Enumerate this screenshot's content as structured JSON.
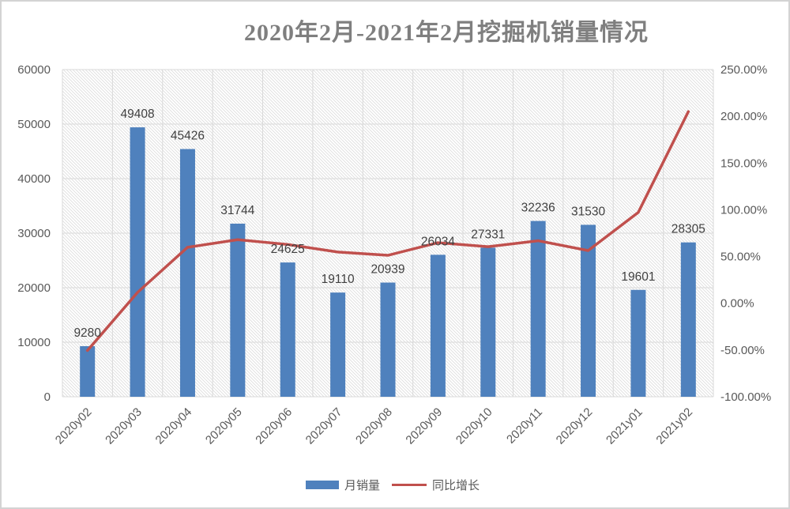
{
  "title": "2020年2月-2021年2月挖掘机销量情况",
  "legend": {
    "bar_label": "月销量",
    "line_label": "同比增长"
  },
  "colors": {
    "bar": "#4F81BD",
    "line": "#C0504D",
    "grid": "#D9D9D9",
    "hatch": "#DEDEDE",
    "axis_text": "#595959",
    "data_label": "#404040",
    "title_text": "#7F7F7F",
    "frame_border": "#D3D3D3"
  },
  "chart_data": {
    "type": "bar+line combo, dual axis",
    "title": "2020年2月-2021年2月挖掘机销量情况",
    "categories": [
      "2020y02",
      "2020y03",
      "2020y04",
      "2020y05",
      "2020y06",
      "2020y07",
      "2020y08",
      "2020y09",
      "2020y10",
      "2020y11",
      "2020y12",
      "2021y01",
      "2021y02"
    ],
    "series": [
      {
        "name": "月销量",
        "type": "bar",
        "axis": "left",
        "values": [
          9280,
          49408,
          45426,
          31744,
          24625,
          19110,
          20939,
          26034,
          27331,
          32236,
          31530,
          19601,
          28305
        ],
        "data_labels": [
          "9280",
          "49408",
          "45426",
          "31744",
          "24625",
          "19110",
          "20939",
          "26034",
          "27331",
          "32236",
          "31530",
          "19601",
          "28305"
        ]
      },
      {
        "name": "同比增长",
        "type": "line",
        "axis": "right",
        "values_percent": [
          -50.5,
          11.6,
          59.9,
          68.0,
          62.9,
          54.8,
          51.3,
          64.8,
          60.5,
          66.9,
          56.4,
          97.2,
          205.0
        ]
      }
    ],
    "left_axis": {
      "min": 0,
      "max": 60000,
      "step": 10000,
      "tick_labels": [
        "0",
        "10000",
        "20000",
        "30000",
        "40000",
        "50000",
        "60000"
      ]
    },
    "right_axis": {
      "min": -100,
      "max": 250,
      "step": 50,
      "tick_labels": [
        "-100.00%",
        "-50.00%",
        "0.00%",
        "50.00%",
        "100.00%",
        "150.00%",
        "200.00%",
        "250.00%"
      ]
    },
    "grid": "horizontal and vertical gridlines, hatched (diagonal stripe) plot-area fill",
    "legend_position": "bottom"
  }
}
